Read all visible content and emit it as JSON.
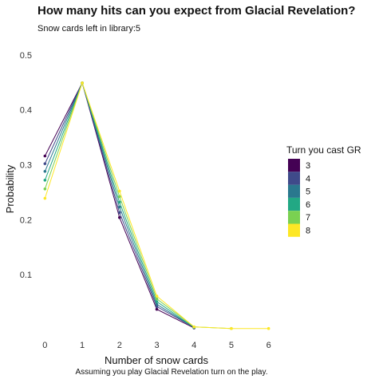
{
  "chart_data": {
    "type": "line",
    "title": "How many hits can you expect from Glacial Revelation?",
    "subtitle": "Snow cards left in library:5",
    "caption": "Assuming you play Glacial Revelation turn on the play.",
    "xlabel": "Number of snow cards",
    "ylabel": "Probability",
    "x": [
      0,
      1,
      2,
      3,
      4,
      5,
      6
    ],
    "x_tick_labels": [
      "0",
      "1",
      "2",
      "3",
      "4",
      "5",
      "6"
    ],
    "y_tick_values": [
      0.1,
      0.2,
      0.3,
      0.4,
      0.5
    ],
    "y_tick_labels": [
      "0.1",
      "0.2",
      "0.3",
      "0.4",
      "0.5"
    ],
    "xlim": [
      -0.35,
      6.35
    ],
    "ylim": [
      -0.01,
      0.52
    ],
    "grid": false,
    "legend": {
      "title": "Turn you cast GR",
      "placement": "right"
    },
    "series": [
      {
        "name": "3",
        "color": "#440154",
        "values": [
          0.316,
          0.449,
          0.204,
          0.037,
          0.003,
          null,
          null
        ]
      },
      {
        "name": "4",
        "color": "#3f4a8a",
        "values": [
          0.302,
          0.449,
          0.213,
          0.042,
          0.004,
          null,
          null
        ]
      },
      {
        "name": "5",
        "color": "#2a788e",
        "values": [
          0.288,
          0.449,
          0.223,
          0.046,
          0.004,
          null,
          null
        ]
      },
      {
        "name": "6",
        "color": "#22a884",
        "values": [
          0.272,
          0.449,
          0.232,
          0.051,
          0.004,
          null,
          null
        ]
      },
      {
        "name": "7",
        "color": "#7ad151",
        "values": [
          0.256,
          0.449,
          0.242,
          0.056,
          0.005,
          0.002,
          null
        ]
      },
      {
        "name": "8",
        "color": "#fde725",
        "values": [
          0.239,
          0.449,
          0.252,
          0.061,
          0.005,
          0.002,
          0.002
        ]
      }
    ]
  }
}
